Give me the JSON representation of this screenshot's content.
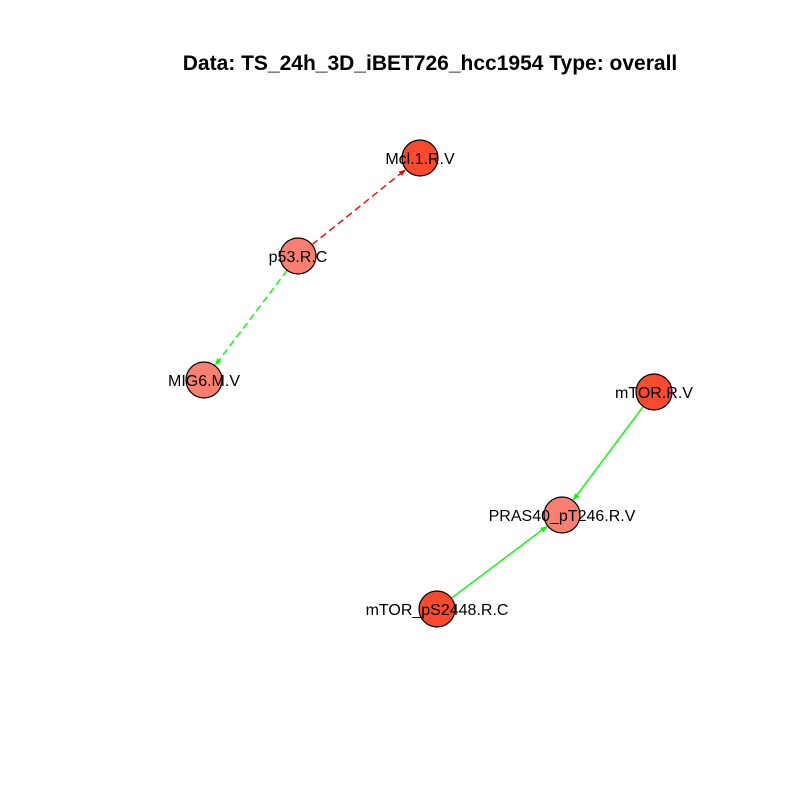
{
  "title": "Data: TS_24h_3D_iBET726_hcc1954 Type: overall",
  "colors": {
    "node_dark": "#f84a2e",
    "node_light": "#f98071",
    "edge_red": "#ff0000",
    "edge_green": "#00ff00"
  },
  "nodes": [
    {
      "id": "mcl1",
      "label": "Mcl.1.R.V",
      "fill": "node_dark"
    },
    {
      "id": "p53",
      "label": "p53.R.C",
      "fill": "node_light"
    },
    {
      "id": "mig6",
      "label": "MIG6.M.V",
      "fill": "node_light"
    },
    {
      "id": "mtor",
      "label": "mTOR.R.V",
      "fill": "node_dark"
    },
    {
      "id": "pras40",
      "label": "PRAS40_pT246.R.V",
      "fill": "node_light"
    },
    {
      "id": "mtorps",
      "label": "mTOR_pS2448.R.C",
      "fill": "node_dark"
    }
  ],
  "edges": [
    {
      "from": "p53",
      "to": "mcl1",
      "color": "edge_red",
      "style": "dashed"
    },
    {
      "from": "p53",
      "to": "mig6",
      "color": "edge_green",
      "style": "dashed"
    },
    {
      "from": "mtor",
      "to": "pras40",
      "color": "edge_green",
      "style": "solid"
    },
    {
      "from": "mtorps",
      "to": "pras40",
      "color": "edge_green",
      "style": "solid"
    }
  ]
}
